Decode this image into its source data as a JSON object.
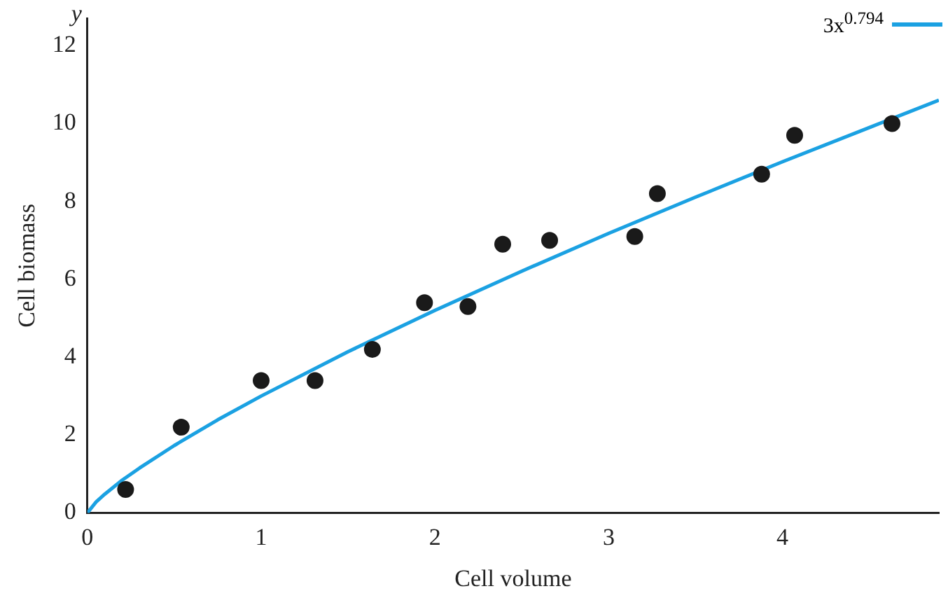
{
  "chart_data": {
    "type": "scatter",
    "xlabel": "Cell volume",
    "ylabel": "Cell biomass",
    "annotations": [
      "y"
    ],
    "xlim": [
      0,
      4.9
    ],
    "ylim": [
      0,
      12.7
    ],
    "xticks": [
      0,
      1,
      2,
      3,
      4
    ],
    "yticks": [
      0,
      2,
      4,
      6,
      8,
      10,
      12
    ],
    "grid": false,
    "legend": "top right",
    "marker": "circle",
    "series": [
      {
        "color": "#1a1a1a",
        "x": [
          0.22,
          0.54,
          1.0,
          1.31,
          1.64,
          1.94,
          2.19,
          2.39,
          2.66,
          3.15,
          3.28,
          3.88,
          4.07,
          4.63
        ],
        "values": [
          0.6,
          2.2,
          3.4,
          3.4,
          4.2,
          5.4,
          5.3,
          6.9,
          7.0,
          7.1,
          8.2,
          8.7,
          9.7,
          10.0
        ]
      },
      {
        "type": "line",
        "name": "3x$^{0.794}$",
        "color": "#1ba1e2",
        "marker": "none",
        "x": [
          0,
          0.05,
          0.1,
          0.2,
          0.3,
          0.5,
          0.75,
          1,
          1.5,
          2,
          2.5,
          3,
          3.5,
          4,
          4.5,
          4.9
        ],
        "values": [
          0,
          0.28,
          0.48,
          0.84,
          1.15,
          1.73,
          2.39,
          3,
          4.14,
          5.2,
          6.21,
          7.18,
          8.11,
          9.02,
          9.9,
          10.6
        ]
      }
    ]
  }
}
